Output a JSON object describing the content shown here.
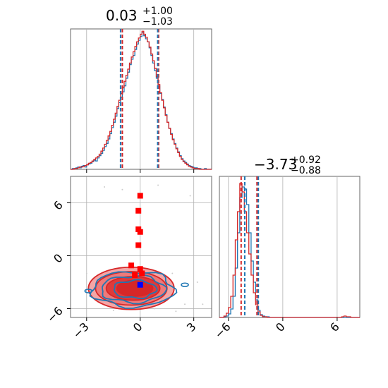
{
  "chart_data": [
    {
      "type": "histogram",
      "panel": "marginal-param-1",
      "title_value": "0.03",
      "title_plus": "+1.00",
      "title_minus": "−1.03",
      "xlim": [
        -3.9,
        4.0
      ],
      "ymax": 185,
      "bins_start": -3.9,
      "bin_width": 0.1,
      "series": [
        {
          "color": "#1f77b4",
          "values": [
            0,
            1,
            1,
            2,
            3,
            2,
            4,
            5,
            3,
            6,
            7,
            8,
            10,
            12,
            11,
            15,
            18,
            21,
            25,
            30,
            34,
            40,
            47,
            55,
            62,
            70,
            80,
            88,
            95,
            102,
            110,
            120,
            128,
            138,
            145,
            150,
            158,
            165,
            170,
            175,
            180,
            176,
            172,
            168,
            160,
            150,
            140,
            130,
            120,
            110,
            100,
            92,
            82,
            72,
            62,
            54,
            47,
            40,
            34,
            28,
            23,
            18,
            14,
            11,
            9,
            7,
            5,
            4,
            3,
            2,
            2,
            1,
            1,
            0,
            0,
            1,
            0,
            0,
            0
          ]
        },
        {
          "color": "#d62728",
          "values": [
            0,
            0,
            1,
            1,
            2,
            3,
            3,
            4,
            5,
            6,
            8,
            9,
            11,
            13,
            15,
            17,
            20,
            24,
            28,
            33,
            38,
            44,
            50,
            58,
            66,
            74,
            83,
            91,
            100,
            108,
            116,
            124,
            132,
            140,
            148,
            155,
            162,
            168,
            173,
            178,
            182,
            178,
            174,
            168,
            161,
            152,
            143,
            133,
            122,
            112,
            101,
            91,
            81,
            71,
            62,
            54,
            46,
            39,
            33,
            27,
            22,
            17,
            13,
            10,
            8,
            6,
            4,
            3,
            2,
            1,
            1,
            1,
            0,
            0,
            0,
            0,
            0,
            0,
            0
          ]
        }
      ],
      "quantile_lines": [
        {
          "color": "#d62728",
          "values": [
            -1.0,
            1.03
          ]
        },
        {
          "color": "#1f77b4",
          "values": [
            -1.1,
            0.98
          ]
        }
      ]
    },
    {
      "type": "histogram",
      "panel": "marginal-param-2",
      "title_value": "−3.73",
      "title_plus": "+0.92",
      "title_minus": "−0.88",
      "xlim": [
        -7.0,
        8.5
      ],
      "ymax": 200,
      "bins_start": -7.0,
      "bin_width": 0.25,
      "series": [
        {
          "color": "#1f77b4",
          "values": [
            0,
            0,
            1,
            2,
            5,
            12,
            30,
            70,
            120,
            170,
            185,
            182,
            160,
            120,
            80,
            50,
            25,
            10,
            4,
            2,
            1,
            1,
            0,
            0,
            0,
            0,
            0,
            0,
            0,
            0,
            0,
            0,
            0,
            0,
            0,
            0,
            0,
            0,
            0,
            0,
            0,
            0,
            0,
            0,
            0,
            0,
            0,
            0,
            0,
            0,
            0,
            0,
            0,
            0,
            0,
            0,
            0,
            0,
            0,
            0,
            0,
            0
          ]
        },
        {
          "color": "#d62728",
          "values": [
            0,
            0,
            2,
            6,
            14,
            30,
            60,
            110,
            150,
            190,
            178,
            150,
            120,
            90,
            60,
            35,
            18,
            8,
            3,
            1,
            1,
            0,
            0,
            0,
            0,
            0,
            0,
            0,
            0,
            0,
            0,
            0,
            0,
            0,
            0,
            0,
            0,
            0,
            0,
            0,
            0,
            0,
            0,
            0,
            0,
            0,
            0,
            0,
            0,
            0,
            0,
            0,
            0,
            0,
            1,
            2,
            1,
            1,
            0,
            0,
            0,
            0
          ]
        }
      ],
      "quantile_lines": [
        {
          "color": "#d62728",
          "values": [
            -4.6,
            -2.85
          ]
        },
        {
          "color": "#1f77b4",
          "values": [
            -4.2,
            -2.7
          ]
        }
      ]
    },
    {
      "type": "2d-density",
      "panel": "joint-param-1-param-2",
      "xlim": [
        -3.9,
        4.0
      ],
      "ylim": [
        -7.0,
        9.0
      ],
      "xticks": [
        "−3",
        "0",
        "3"
      ],
      "xtick_values": [
        -3,
        0,
        3
      ],
      "yticks": [
        "−6",
        "0",
        "6"
      ],
      "ytick_values": [
        -6,
        0,
        6
      ],
      "red_contours": [
        {
          "cx": -0.5,
          "cy": -3.7,
          "rx": 2.4,
          "ry": 2.4,
          "fill": "#f4a6a6"
        },
        {
          "cx": -0.5,
          "cy": -3.7,
          "rx": 2.0,
          "ry": 1.9,
          "fill": "#ee7a7a"
        },
        {
          "cx": -0.4,
          "cy": -3.7,
          "rx": 1.5,
          "ry": 1.35,
          "fill": "#df3a3a"
        },
        {
          "cx": -0.3,
          "cy": -3.7,
          "rx": 1.0,
          "ry": 0.9,
          "fill": "#d62728"
        }
      ],
      "blue_contours": [
        {
          "cx": -0.4,
          "cy": -3.8,
          "rx": 2.3,
          "ry": 2.0
        },
        {
          "cx": -0.4,
          "cy": -3.8,
          "rx": 1.8,
          "ry": 1.5
        },
        {
          "cx": -0.3,
          "cy": -3.8,
          "rx": 1.2,
          "ry": 1.0
        }
      ],
      "red_points": [
        {
          "x": 0.0,
          "y": 6.8
        },
        {
          "x": -0.1,
          "y": 5.1
        },
        {
          "x": -0.1,
          "y": 3.0
        },
        {
          "x": 0.0,
          "y": 2.7
        },
        {
          "x": -0.1,
          "y": 1.2
        },
        {
          "x": -0.5,
          "y": -1.1
        },
        {
          "x": 0.0,
          "y": -1.5
        },
        {
          "x": 0.1,
          "y": -2.0
        },
        {
          "x": -0.3,
          "y": -2.2
        }
      ],
      "blue_points": [
        {
          "x": 0.0,
          "y": -3.3
        }
      ],
      "marginal_xticks": [
        "−6",
        "0",
        "6"
      ],
      "marginal_xtick_values": [
        -6,
        0,
        6
      ]
    }
  ]
}
